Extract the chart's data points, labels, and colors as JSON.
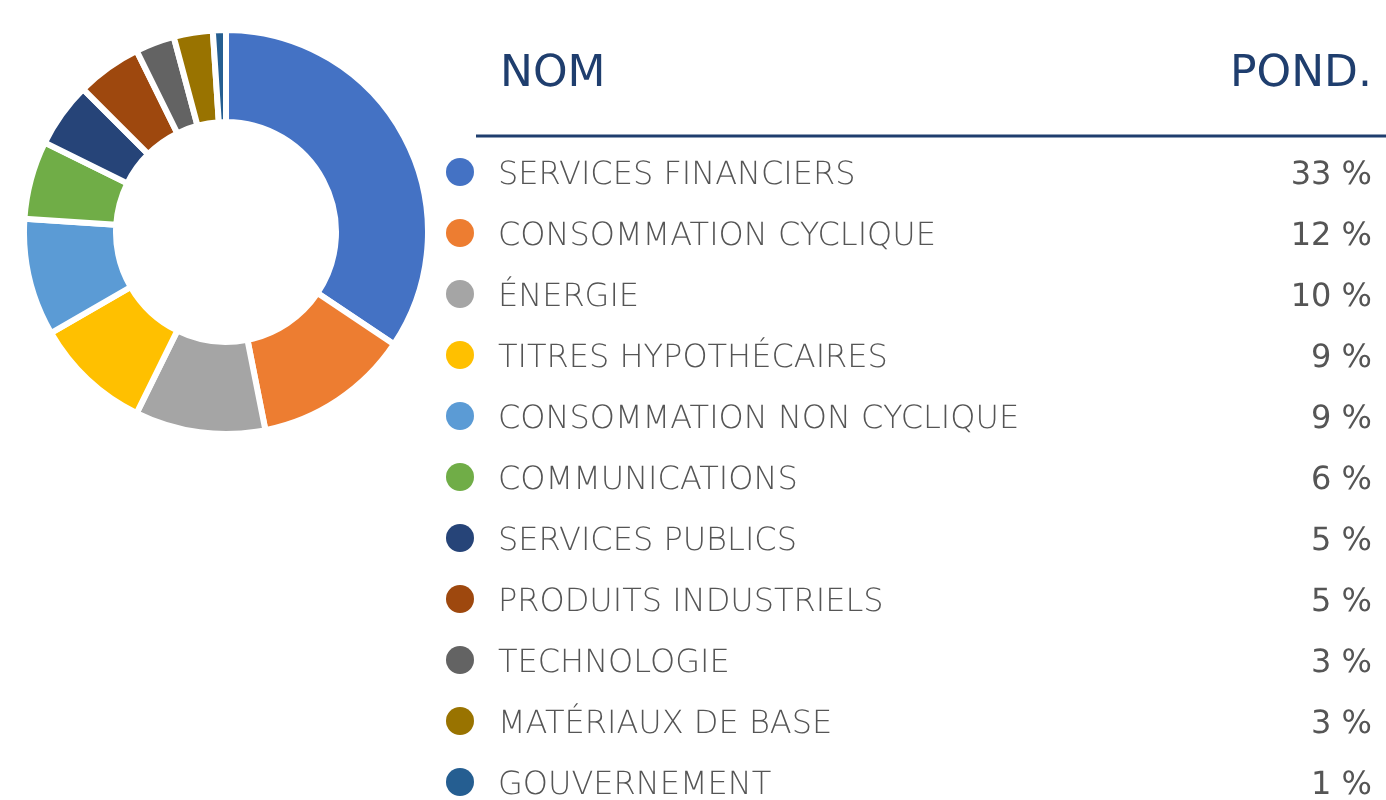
{
  "chart_data": {
    "type": "donut",
    "legend_title": "NOM",
    "annotations": [
      "POND."
    ],
    "categories": [
      "SERVICES FINANCIERS",
      "CONSOMMATION CYCLIQUE",
      "ÉNERGIE",
      "TITRES HYPOTHÉCAIRES",
      "CONSOMMATION NON CYCLIQUE",
      "COMMUNICATIONS",
      "SERVICES PUBLICS",
      "PRODUITS INDUSTRIELS",
      "TECHNOLOGIE",
      "MATÉRIAUX DE BASE",
      "GOUVERNEMENT"
    ],
    "values": [
      33,
      12,
      10,
      9,
      9,
      6,
      5,
      5,
      3,
      3,
      1
    ],
    "value_labels": [
      "33 %",
      "12 %",
      "10 %",
      "9 %",
      "9 %",
      "6 %",
      "5 %",
      "5 %",
      "3 %",
      "3 %",
      "1 %"
    ],
    "colors": [
      "#4472c4",
      "#ed7d31",
      "#a5a5a5",
      "#ffc000",
      "#5b9bd5",
      "#70ad47",
      "#264478",
      "#9e480e",
      "#636363",
      "#997300",
      "#255e91"
    ],
    "legend": "right"
  }
}
